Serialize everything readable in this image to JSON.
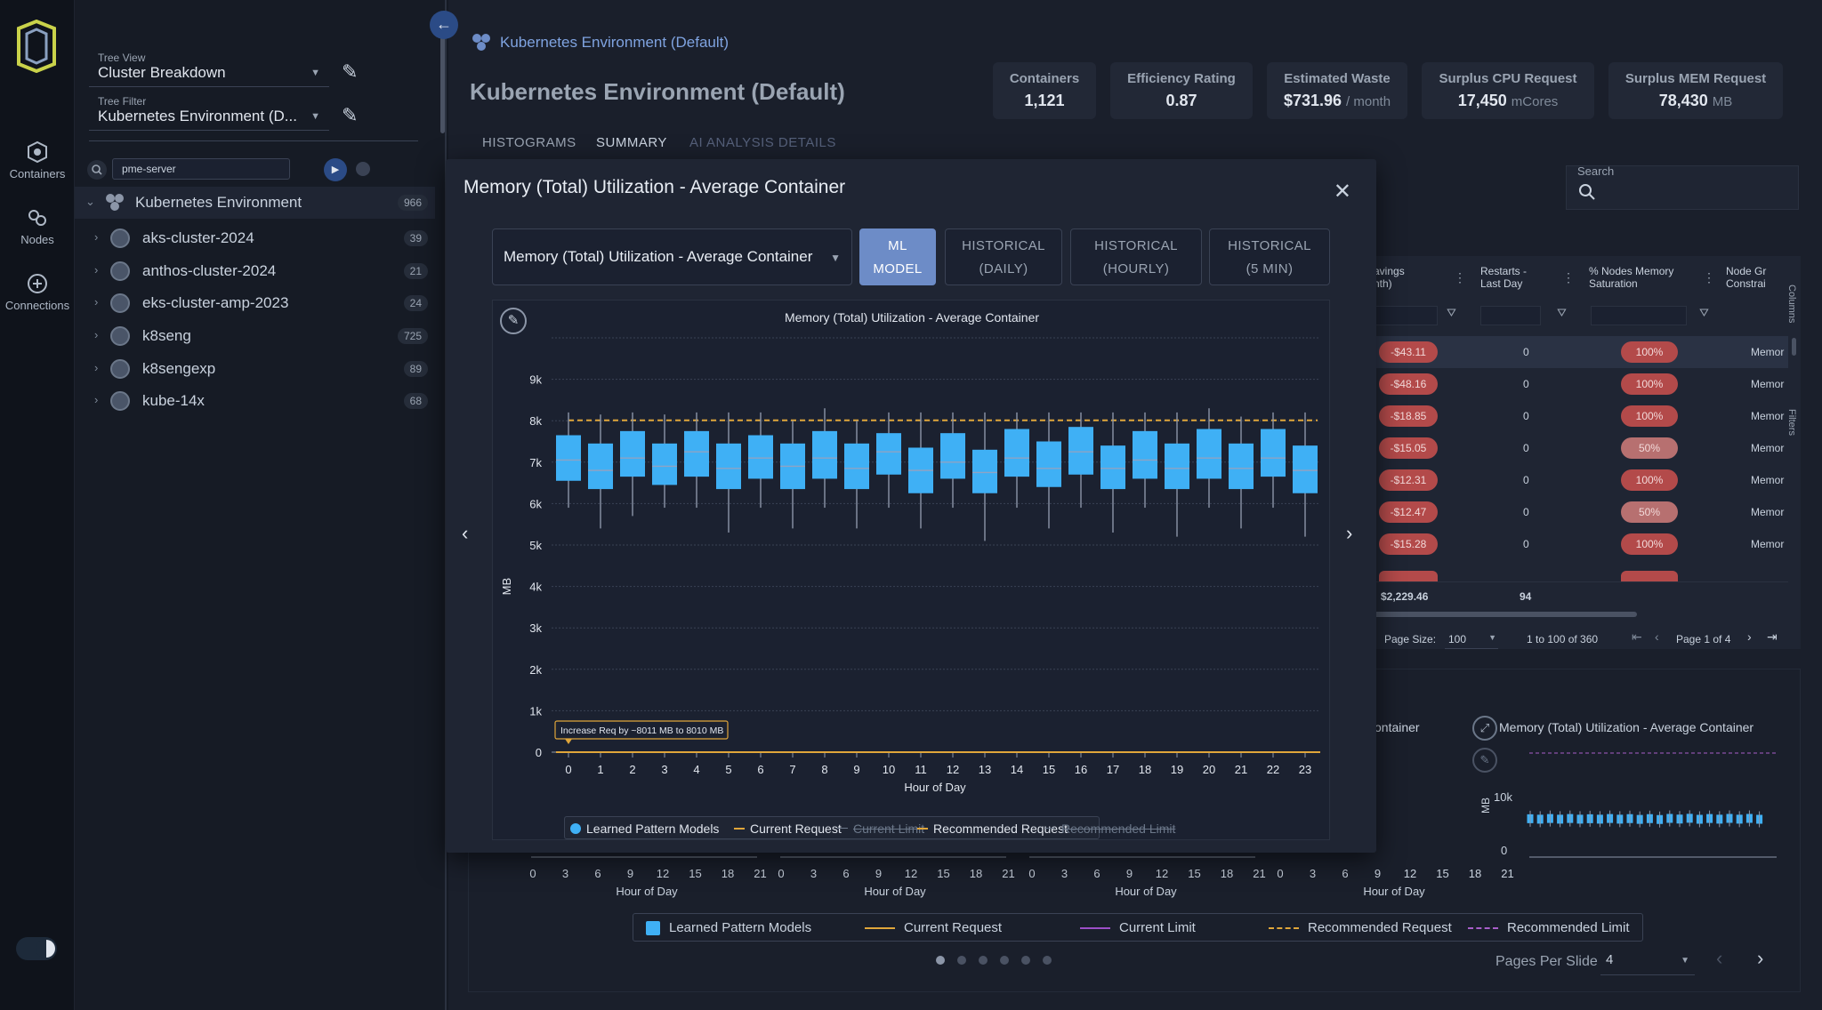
{
  "rail": {
    "items": [
      {
        "label": "Containers"
      },
      {
        "label": "Nodes"
      },
      {
        "label": "Connections"
      }
    ]
  },
  "tree": {
    "view_label": "Tree View",
    "view_value": "Cluster Breakdown",
    "filter_label": "Tree Filter",
    "filter_value": "Kubernetes Environment (D...",
    "search_value": "pme-server",
    "root": {
      "label": "Kubernetes Environment",
      "count": "966"
    },
    "items": [
      {
        "label": "aks-cluster-2024",
        "count": "39"
      },
      {
        "label": "anthos-cluster-2024",
        "count": "21"
      },
      {
        "label": "eks-cluster-amp-2023",
        "count": "24"
      },
      {
        "label": "k8seng",
        "count": "725"
      },
      {
        "label": "k8sengexp",
        "count": "89"
      },
      {
        "label": "kube-14x",
        "count": "68"
      }
    ]
  },
  "header": {
    "breadcrumb": "Kubernetes Environment (Default)",
    "title": "Kubernetes Environment (Default)",
    "kpis": [
      {
        "title": "Containers",
        "value": "1,121",
        "unit": ""
      },
      {
        "title": "Efficiency Rating",
        "value": "0.87",
        "unit": ""
      },
      {
        "title": "Estimated Waste",
        "value": "$731.96",
        "unit": "/ month"
      },
      {
        "title": "Surplus CPU Request",
        "value": "17,450",
        "unit": "mCores"
      },
      {
        "title": "Surplus MEM Request",
        "value": "78,430",
        "unit": "MB"
      }
    ],
    "tabs": [
      "HISTOGRAMS",
      "SUMMARY",
      "AI ANALYSIS DETAILS"
    ]
  },
  "search": {
    "label": "Search"
  },
  "table": {
    "headers": [
      "avings\nnth)",
      "Restarts -\nLast Day",
      "% Nodes Memory\nSaturation",
      "Node Gr\nConstrai"
    ],
    "rows": [
      {
        "savings": "-$43.11",
        "restarts": "0",
        "saturation": "100%",
        "node": "Memor"
      },
      {
        "savings": "-$48.16",
        "restarts": "0",
        "saturation": "100%",
        "node": "Memor"
      },
      {
        "savings": "-$18.85",
        "restarts": "0",
        "saturation": "100%",
        "node": "Memor"
      },
      {
        "savings": "-$15.05",
        "restarts": "0",
        "saturation": "50%",
        "node": "Memor"
      },
      {
        "savings": "-$12.31",
        "restarts": "0",
        "saturation": "100%",
        "node": "Memor"
      },
      {
        "savings": "-$12.47",
        "restarts": "0",
        "saturation": "50%",
        "node": "Memor"
      },
      {
        "savings": "-$15.28",
        "restarts": "0",
        "saturation": "100%",
        "node": "Memor"
      }
    ],
    "total_savings": "$2,229.46",
    "total_restarts": "94",
    "page_size_label": "Page Size:",
    "page_size": "100",
    "range_text": "1 to 100 of 360",
    "page_text": "Page 1 of 4",
    "side_tabs": [
      "Columns",
      "Filters"
    ]
  },
  "thumbs": {
    "x_ticks": [
      "0",
      "3",
      "6",
      "9",
      "12",
      "15",
      "18",
      "21"
    ],
    "xlabel": "Hour of Day",
    "partial_title": "ontainer",
    "right_title": "Memory (Total) Utilization - Average Container",
    "right_ylabel": "MB",
    "right_yticks": [
      "10k",
      "0"
    ],
    "legend": [
      "Learned Pattern Models",
      "Current Request",
      "Current Limit",
      "Recommended Request",
      "Recommended Limit"
    ],
    "pages_per_slide_label": "Pages Per Slide",
    "pages_per_slide": "4"
  },
  "modal": {
    "title": "Memory (Total) Utilization - Average Container",
    "select_value": "Memory (Total) Utilization - Average Container",
    "tabs": [
      {
        "line1": "ML",
        "line2": "MODEL"
      },
      {
        "line1": "HISTORICAL",
        "line2": "(DAILY)"
      },
      {
        "line1": "HISTORICAL",
        "line2": "(HOURLY)"
      },
      {
        "line1": "HISTORICAL",
        "line2": "(5 MIN)"
      }
    ]
  },
  "colors": {
    "accent": "#6d8cc7",
    "box": "#3fb0f5",
    "current_request": "#e0a63a",
    "current_limit": "#9c4fc7",
    "recommended_request": "#e0a63a",
    "recommended_limit": "#a85ec9",
    "danger": "#b34a4a"
  },
  "chart_data": {
    "type": "box",
    "title": "Memory (Total) Utilization - Average Container",
    "xlabel": "Hour of Day",
    "ylabel": "MB",
    "ylim": [
      0,
      10000
    ],
    "yticks": [
      "0",
      "1k",
      "2k",
      "3k",
      "4k",
      "5k",
      "6k",
      "7k",
      "8k",
      "9k"
    ],
    "categories": [
      0,
      1,
      2,
      3,
      4,
      5,
      6,
      7,
      8,
      9,
      10,
      11,
      12,
      13,
      14,
      15,
      16,
      17,
      18,
      19,
      20,
      21,
      22,
      23
    ],
    "series": [
      {
        "name": "Learned Pattern Models",
        "values": [
          {
            "min": 5900,
            "q1": 6550,
            "median": 7050,
            "q3": 7650,
            "max": 8200
          },
          {
            "min": 5400,
            "q1": 6350,
            "median": 6800,
            "q3": 7450,
            "max": 8150
          },
          {
            "min": 5700,
            "q1": 6650,
            "median": 7100,
            "q3": 7750,
            "max": 8200
          },
          {
            "min": 5900,
            "q1": 6450,
            "median": 6900,
            "q3": 7450,
            "max": 8150
          },
          {
            "min": 5900,
            "q1": 6650,
            "median": 7250,
            "q3": 7750,
            "max": 8200
          },
          {
            "min": 5300,
            "q1": 6350,
            "median": 6850,
            "q3": 7450,
            "max": 8200
          },
          {
            "min": 5900,
            "q1": 6600,
            "median": 7100,
            "q3": 7650,
            "max": 8200
          },
          {
            "min": 5400,
            "q1": 6350,
            "median": 6900,
            "q3": 7450,
            "max": 8000
          },
          {
            "min": 5900,
            "q1": 6600,
            "median": 7100,
            "q3": 7750,
            "max": 8300
          },
          {
            "min": 5400,
            "q1": 6350,
            "median": 6850,
            "q3": 7450,
            "max": 8000
          },
          {
            "min": 5900,
            "q1": 6700,
            "median": 7250,
            "q3": 7700,
            "max": 8200
          },
          {
            "min": 5400,
            "q1": 6250,
            "median": 6800,
            "q3": 7350,
            "max": 8200
          },
          {
            "min": 5900,
            "q1": 6600,
            "median": 7000,
            "q3": 7700,
            "max": 8200
          },
          {
            "min": 5100,
            "q1": 6250,
            "median": 6750,
            "q3": 7300,
            "max": 8200
          },
          {
            "min": 5900,
            "q1": 6650,
            "median": 7100,
            "q3": 7800,
            "max": 8200
          },
          {
            "min": 5400,
            "q1": 6400,
            "median": 6850,
            "q3": 7500,
            "max": 8200
          },
          {
            "min": 5900,
            "q1": 6700,
            "median": 7250,
            "q3": 7850,
            "max": 8200
          },
          {
            "min": 5300,
            "q1": 6350,
            "median": 6850,
            "q3": 7400,
            "max": 8200
          },
          {
            "min": 5900,
            "q1": 6600,
            "median": 7050,
            "q3": 7750,
            "max": 8200
          },
          {
            "min": 5200,
            "q1": 6350,
            "median": 6850,
            "q3": 7450,
            "max": 8200
          },
          {
            "min": 5900,
            "q1": 6600,
            "median": 7100,
            "q3": 7800,
            "max": 8300
          },
          {
            "min": 5400,
            "q1": 6350,
            "median": 6850,
            "q3": 7450,
            "max": 8100
          },
          {
            "min": 5900,
            "q1": 6650,
            "median": 7100,
            "q3": 7800,
            "max": 8200
          },
          {
            "min": 5200,
            "q1": 6250,
            "median": 6800,
            "q3": 7400,
            "max": 8200
          }
        ]
      },
      {
        "name": "Current Request",
        "values": [
          0
        ]
      },
      {
        "name": "Recommended Request",
        "values": [
          8010
        ]
      }
    ],
    "legend": [
      "Learned Pattern Models",
      "Current Request",
      "Current Limit",
      "Recommended Request",
      "Recommended Limit"
    ],
    "legend_disabled": [
      "Current Limit",
      "Recommended Limit"
    ],
    "annotation": "Increase Req by ~8011 MB to 8010 MB",
    "grid": true
  }
}
